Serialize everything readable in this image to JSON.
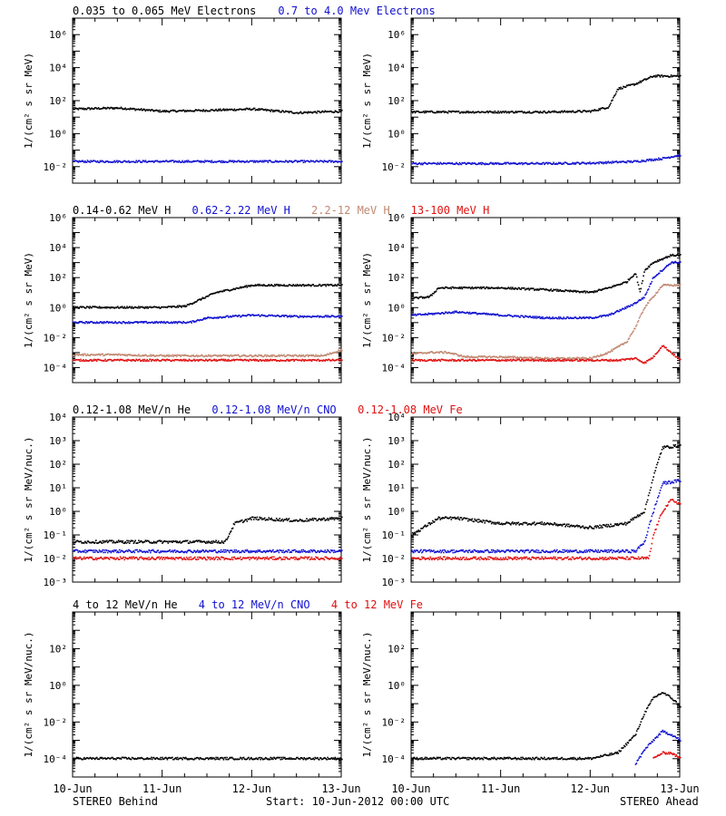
{
  "footer": {
    "left": "STEREO Behind",
    "center": "Start: 10-Jun-2012 00:00 UTC",
    "right": "STEREO Ahead"
  },
  "x_ticks": [
    "10-Jun",
    "11-Jun",
    "12-Jun",
    "13-Jun"
  ],
  "rows": [
    {
      "headings": [
        {
          "text": "0.035 to 0.065 MeV Electrons",
          "color": "#000000"
        },
        {
          "text": "0.7 to 4.0 Mev Electrons",
          "color": "#1010d0"
        }
      ],
      "ylabel": "1/(cm² s sr MeV)",
      "ylim": [
        0.001,
        10000000
      ],
      "tick_exps": [
        -2,
        0,
        2,
        4,
        6
      ]
    },
    {
      "headings": [
        {
          "text": "0.14-0.62 MeV H",
          "color": "#000000"
        },
        {
          "text": "0.62-2.22 MeV H",
          "color": "#1010d0"
        },
        {
          "text": "2.2-12 MeV H",
          "color": "#c08870"
        },
        {
          "text": "13-100 MeV H",
          "color": "#e01010"
        }
      ],
      "ylabel": "1/(cm² s sr MeV)",
      "ylim": [
        1e-05,
        1000000
      ],
      "tick_exps": [
        -4,
        -2,
        0,
        2,
        4,
        6
      ]
    },
    {
      "headings": [
        {
          "text": "0.12-1.08 MeV/n He",
          "color": "#000000"
        },
        {
          "text": "0.12-1.08 MeV/n CNO",
          "color": "#1010d0"
        },
        {
          "text": "0.12-1.08 MeV Fe",
          "color": "#e01010"
        }
      ],
      "ylabel": "1/(cm² s sr MeV/nuc.)",
      "ylim": [
        0.001,
        10000
      ],
      "tick_exps": [
        -3,
        -2,
        -1,
        0,
        1,
        2,
        3,
        4
      ]
    },
    {
      "headings": [
        {
          "text": "4 to 12 MeV/n He",
          "color": "#000000"
        },
        {
          "text": "4 to 12 MeV/n CNO",
          "color": "#1010d0"
        },
        {
          "text": "4 to 12 MeV Fe",
          "color": "#e01010"
        }
      ],
      "ylabel": "1/(cm² s sr MeV/nuc.)",
      "ylim": [
        1e-05,
        10000
      ],
      "tick_exps": [
        -4,
        -2,
        0,
        2
      ]
    }
  ],
  "chart_data": [
    {
      "type": "scatter",
      "panel": "electrons-behind",
      "x_unit": "days since 10-Jun-2012 00:00 UTC",
      "xlim": [
        0,
        3
      ],
      "ylog": true,
      "series": [
        {
          "name": "0.035 to 0.065 MeV Electrons",
          "color": "#000000",
          "x": [
            0,
            0.5,
            1.0,
            1.5,
            2.0,
            2.5,
            3.0
          ],
          "y": [
            30,
            35,
            22,
            25,
            30,
            18,
            22
          ]
        },
        {
          "name": "0.7 to 4.0 Mev Electrons",
          "color": "#1010d0",
          "x": [
            0,
            0.5,
            1.0,
            1.5,
            2.0,
            2.5,
            3.0
          ],
          "y": [
            0.02,
            0.02,
            0.02,
            0.02,
            0.02,
            0.02,
            0.02
          ]
        }
      ]
    },
    {
      "type": "scatter",
      "panel": "electrons-ahead",
      "x_unit": "days since 10-Jun-2012 00:00 UTC",
      "xlim": [
        0,
        3
      ],
      "ylog": true,
      "series": [
        {
          "name": "0.035 to 0.065 MeV Electrons",
          "color": "#000000",
          "x": [
            0,
            0.5,
            1.0,
            1.5,
            2.0,
            2.2,
            2.3,
            2.5,
            2.7,
            3.0
          ],
          "y": [
            20,
            20,
            20,
            20,
            22,
            40,
            500,
            1000,
            3000,
            3000
          ]
        },
        {
          "name": "0.7 to 4.0 Mev Electrons",
          "color": "#1010d0",
          "x": [
            0,
            0.5,
            1.0,
            1.5,
            2.0,
            2.5,
            2.8,
            3.0
          ],
          "y": [
            0.015,
            0.015,
            0.015,
            0.015,
            0.016,
            0.02,
            0.03,
            0.05
          ]
        }
      ]
    },
    {
      "type": "scatter",
      "panel": "protons-behind",
      "x_unit": "days since 10-Jun-2012 00:00 UTC",
      "xlim": [
        0,
        3
      ],
      "ylog": true,
      "series": [
        {
          "name": "0.14-0.62 MeV H",
          "color": "#000000",
          "x": [
            0,
            0.5,
            1.0,
            1.25,
            1.4,
            1.6,
            2.0,
            2.5,
            3.0
          ],
          "y": [
            1,
            1,
            1,
            1.2,
            3,
            10,
            30,
            30,
            30
          ]
        },
        {
          "name": "0.62-2.22 MeV H",
          "color": "#1010d0",
          "x": [
            0,
            0.5,
            1.0,
            1.3,
            1.5,
            2.0,
            2.5,
            3.0
          ],
          "y": [
            0.1,
            0.1,
            0.1,
            0.1,
            0.2,
            0.3,
            0.25,
            0.25
          ]
        },
        {
          "name": "2.2-12 MeV H",
          "color": "#c08870",
          "x": [
            0,
            0.5,
            1.0,
            1.5,
            2.0,
            2.5,
            2.8,
            3.0
          ],
          "y": [
            0.0007,
            0.0007,
            0.0006,
            0.0006,
            0.0006,
            0.0006,
            0.0006,
            0.0015
          ]
        },
        {
          "name": "13-100 MeV H",
          "color": "#e01010",
          "x": [
            0,
            0.5,
            1.0,
            1.5,
            2.0,
            2.5,
            3.0
          ],
          "y": [
            0.0003,
            0.0003,
            0.0003,
            0.0003,
            0.0003,
            0.0003,
            0.0003
          ]
        }
      ]
    },
    {
      "type": "scatter",
      "panel": "protons-ahead",
      "x_unit": "days since 10-Jun-2012 00:00 UTC",
      "xlim": [
        0,
        3
      ],
      "ylog": true,
      "series": [
        {
          "name": "0.14-0.62 MeV H",
          "color": "#000000",
          "x": [
            0,
            0.2,
            0.3,
            0.5,
            1.0,
            1.5,
            2.0,
            2.2,
            2.4,
            2.5,
            2.55,
            2.6,
            2.7,
            2.9,
            3.0
          ],
          "y": [
            4,
            5,
            20,
            20,
            20,
            15,
            10,
            20,
            50,
            200,
            10,
            300,
            1000,
            3000,
            3000
          ]
        },
        {
          "name": "0.62-2.22 MeV H",
          "color": "#1010d0",
          "x": [
            0,
            0.3,
            0.5,
            1.0,
            1.5,
            2.0,
            2.2,
            2.4,
            2.5,
            2.6,
            2.7,
            2.9,
            3.0
          ],
          "y": [
            0.3,
            0.4,
            0.5,
            0.3,
            0.2,
            0.2,
            0.3,
            1,
            2,
            5,
            100,
            1000,
            1000
          ]
        },
        {
          "name": "2.2-12 MeV H",
          "color": "#c08870",
          "x": [
            0,
            0.2,
            0.4,
            0.6,
            1.0,
            1.5,
            2.0,
            2.2,
            2.4,
            2.5,
            2.6,
            2.8,
            3.0
          ],
          "y": [
            0.0008,
            0.001,
            0.001,
            0.0005,
            0.0005,
            0.0004,
            0.0004,
            0.001,
            0.005,
            0.05,
            1,
            30,
            30
          ]
        },
        {
          "name": "13-100 MeV H",
          "color": "#e01010",
          "x": [
            0,
            0.5,
            1.0,
            1.5,
            2.0,
            2.3,
            2.5,
            2.6,
            2.7,
            2.8,
            3.0
          ],
          "y": [
            0.0003,
            0.0003,
            0.0003,
            0.0003,
            0.0003,
            0.0003,
            0.0004,
            0.0002,
            0.0005,
            0.003,
            0.0003
          ]
        }
      ]
    },
    {
      "type": "scatter",
      "panel": "heavy-ions-low-behind",
      "x_unit": "days since 10-Jun-2012 00:00 UTC",
      "xlim": [
        0,
        3
      ],
      "ylog": true,
      "series": [
        {
          "name": "0.12-1.08 MeV/n He",
          "color": "#000000",
          "x": [
            0,
            0.5,
            1.0,
            1.5,
            1.7,
            1.8,
            2.0,
            2.5,
            3.0
          ],
          "y": [
            0.05,
            0.05,
            0.05,
            0.05,
            0.05,
            0.3,
            0.5,
            0.4,
            0.5
          ]
        },
        {
          "name": "0.12-1.08 MeV/n CNO",
          "color": "#1010d0",
          "x": [
            0,
            0.5,
            1.0,
            1.5,
            2.0,
            2.5,
            3.0
          ],
          "y": [
            0.02,
            0.02,
            0.02,
            0.02,
            0.02,
            0.02,
            0.02
          ]
        },
        {
          "name": "0.12-1.08 MeV Fe",
          "color": "#e01010",
          "x": [
            0,
            0.5,
            1.0,
            1.5,
            2.0,
            2.5,
            3.0
          ],
          "y": [
            0.01,
            0.01,
            0.01,
            0.01,
            0.01,
            0.01,
            0.01
          ]
        }
      ]
    },
    {
      "type": "scatter",
      "panel": "heavy-ions-low-ahead",
      "x_unit": "days since 10-Jun-2012 00:00 UTC",
      "xlim": [
        0,
        3
      ],
      "ylog": true,
      "series": [
        {
          "name": "0.12-1.08 MeV/n He",
          "color": "#000000",
          "x": [
            0,
            0.3,
            0.5,
            1.0,
            1.5,
            2.0,
            2.4,
            2.6,
            2.7,
            2.8,
            3.0
          ],
          "y": [
            0.1,
            0.5,
            0.5,
            0.3,
            0.3,
            0.2,
            0.3,
            1,
            30,
            500,
            600
          ]
        },
        {
          "name": "0.12-1.08 MeV/n CNO",
          "color": "#1010d0",
          "x": [
            0,
            0.5,
            1.0,
            1.5,
            2.0,
            2.5,
            2.6,
            2.7,
            2.8,
            3.0
          ],
          "y": [
            0.02,
            0.02,
            0.02,
            0.02,
            0.02,
            0.02,
            0.05,
            1,
            15,
            20
          ]
        },
        {
          "name": "0.12-1.08 MeV Fe",
          "color": "#e01010",
          "x": [
            0,
            0.5,
            1.0,
            1.5,
            2.0,
            2.5,
            2.65,
            2.7,
            2.8,
            2.9,
            3.0
          ],
          "y": [
            0.01,
            0.01,
            0.01,
            0.01,
            0.01,
            0.01,
            0.01,
            0.1,
            1,
            3,
            2
          ]
        }
      ]
    },
    {
      "type": "scatter",
      "panel": "heavy-ions-high-behind",
      "x_unit": "days since 10-Jun-2012 00:00 UTC",
      "xlim": [
        0,
        3
      ],
      "ylog": true,
      "series": [
        {
          "name": "4 to 12 MeV/n He",
          "color": "#000000",
          "x": [
            0,
            0.5,
            1.0,
            1.5,
            2.0,
            2.5,
            3.0
          ],
          "y": [
            0.0001,
            0.0001,
            0.0001,
            0.0001,
            0.0001,
            0.0001,
            0.0001
          ]
        },
        {
          "name": "4 to 12 MeV/n CNO",
          "color": "#1010d0",
          "x": [],
          "y": []
        },
        {
          "name": "4 to 12 MeV Fe",
          "color": "#e01010",
          "x": [],
          "y": []
        }
      ]
    },
    {
      "type": "scatter",
      "panel": "heavy-ions-high-ahead",
      "x_unit": "days since 10-Jun-2012 00:00 UTC",
      "xlim": [
        0,
        3
      ],
      "ylog": true,
      "series": [
        {
          "name": "4 to 12 MeV/n He",
          "color": "#000000",
          "x": [
            0,
            0.5,
            1.0,
            1.5,
            2.0,
            2.3,
            2.5,
            2.6,
            2.7,
            2.8,
            2.9,
            3.0
          ],
          "y": [
            0.0001,
            0.0001,
            0.0001,
            0.0001,
            0.0001,
            0.0002,
            0.002,
            0.03,
            0.2,
            0.4,
            0.2,
            0.07
          ]
        },
        {
          "name": "4 to 12 MeV/n CNO",
          "color": "#1010d0",
          "x": [
            2.5,
            2.6,
            2.7,
            2.8,
            2.9,
            3.0
          ],
          "y": [
            5e-05,
            0.0003,
            0.001,
            0.003,
            0.002,
            0.001
          ]
        },
        {
          "name": "4 to 12 MeV Fe",
          "color": "#e01010",
          "x": [
            2.7,
            2.8,
            2.9,
            3.0
          ],
          "y": [
            0.0001,
            0.0002,
            0.0002,
            0.0001
          ]
        }
      ]
    }
  ]
}
